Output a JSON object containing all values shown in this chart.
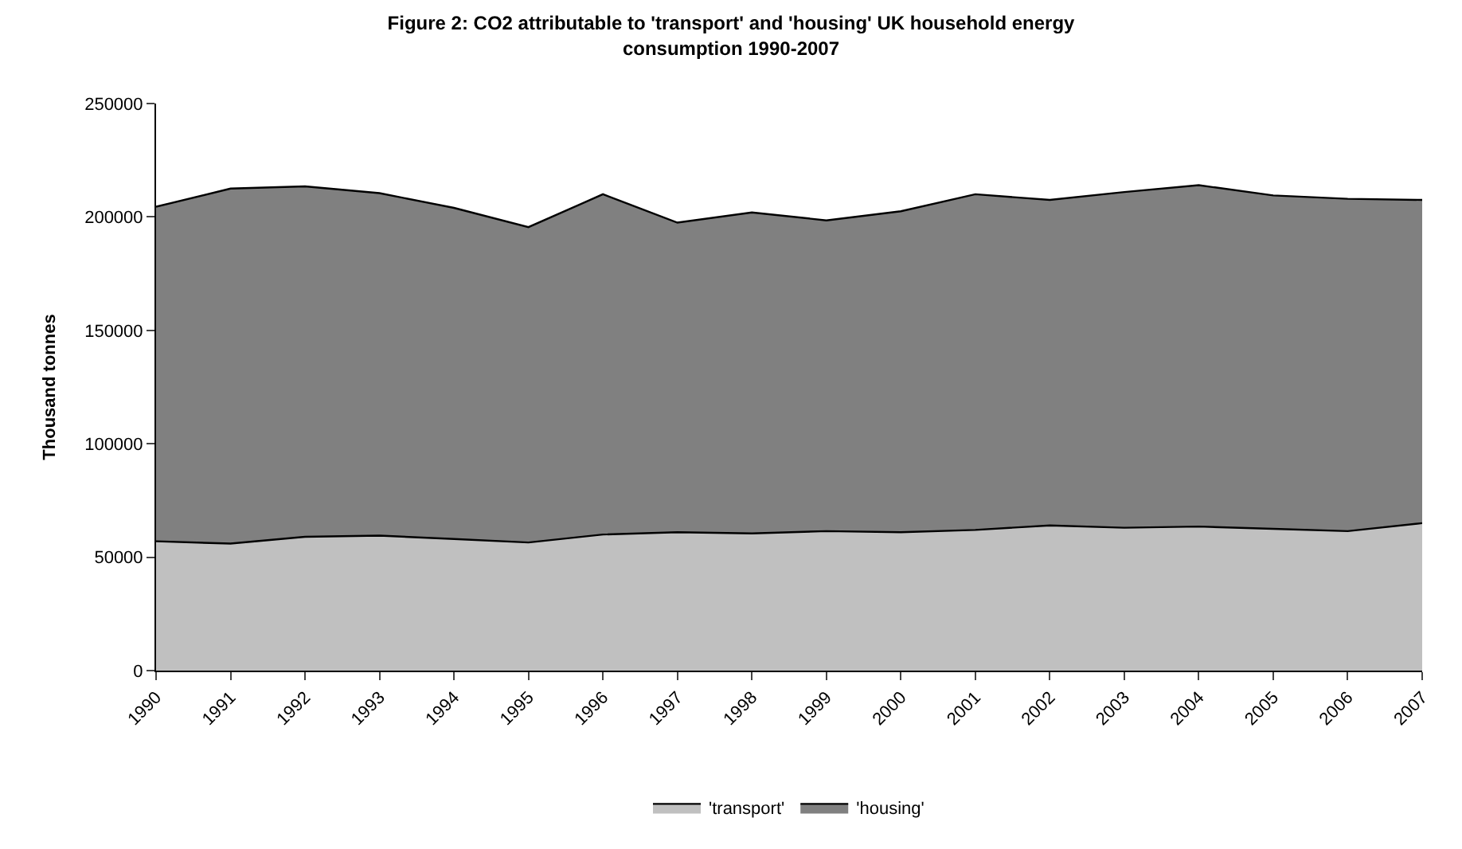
{
  "chart_data": {
    "type": "area",
    "stacked": true,
    "title": "Figure 2: CO2 attributable to 'transport' and 'housing' UK household energy consumption 1990-2007",
    "ylabel": "Thousand tonnes",
    "categories": [
      "1990",
      "1991",
      "1992",
      "1993",
      "1994",
      "1995",
      "1996",
      "1997",
      "1998",
      "1999",
      "2000",
      "2001",
      "2002",
      "2003",
      "2004",
      "2005",
      "2006",
      "2007"
    ],
    "series": [
      {
        "name": "'transport'",
        "color": "#c0c0c0",
        "values": [
          57000,
          56000,
          59000,
          59500,
          58000,
          56500,
          60000,
          61000,
          60500,
          61500,
          61000,
          62000,
          64000,
          63000,
          63500,
          62500,
          61500,
          65000
        ]
      },
      {
        "name": "'housing'",
        "color": "#808080",
        "values": [
          147500,
          156500,
          154500,
          151000,
          146000,
          139000,
          150000,
          136500,
          141500,
          137000,
          141500,
          148000,
          143500,
          148000,
          150500,
          147000,
          146500,
          142500
        ]
      }
    ],
    "ylim": [
      0,
      250000
    ],
    "yticks": [
      0,
      50000,
      100000,
      150000,
      200000,
      250000
    ],
    "legend": "bottom"
  }
}
